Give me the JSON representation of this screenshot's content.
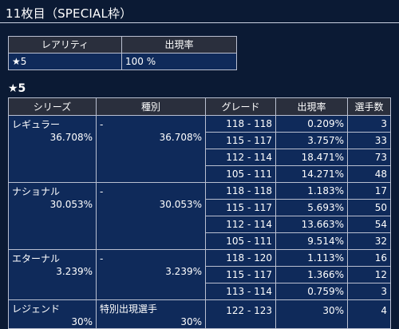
{
  "page_title": "11枚目（SPECIAL枠）",
  "rarity_table": {
    "headers": [
      "レアリティ",
      "出現率"
    ],
    "rows": [
      {
        "rarity": "★5",
        "rate": "100 %"
      }
    ]
  },
  "section_title": "★5",
  "breakdown_table": {
    "headers": [
      "シリーズ",
      "種別",
      "グレード",
      "出現率",
      "選手数"
    ],
    "groups": [
      {
        "series": "レギュラー",
        "series_rate": "36.708%",
        "type": "-",
        "type_rate": "36.708%",
        "rows": [
          {
            "grade": "118 - 118",
            "rate": "0.209%",
            "count": "3"
          },
          {
            "grade": "115 - 117",
            "rate": "3.757%",
            "count": "33"
          },
          {
            "grade": "112 - 114",
            "rate": "18.471%",
            "count": "73"
          },
          {
            "grade": "105 - 111",
            "rate": "14.271%",
            "count": "48"
          }
        ]
      },
      {
        "series": "ナショナル",
        "series_rate": "30.053%",
        "type": "-",
        "type_rate": "30.053%",
        "rows": [
          {
            "grade": "118 - 118",
            "rate": "1.183%",
            "count": "17"
          },
          {
            "grade": "115 - 117",
            "rate": "5.693%",
            "count": "50"
          },
          {
            "grade": "112 - 114",
            "rate": "13.663%",
            "count": "54"
          },
          {
            "grade": "105 - 111",
            "rate": "9.514%",
            "count": "32"
          }
        ]
      },
      {
        "series": "エターナル",
        "series_rate": "3.239%",
        "type": "-",
        "type_rate": "3.239%",
        "rows": [
          {
            "grade": "118 - 120",
            "rate": "1.113%",
            "count": "16"
          },
          {
            "grade": "115 - 117",
            "rate": "1.366%",
            "count": "12"
          },
          {
            "grade": "113 - 114",
            "rate": "0.759%",
            "count": "3"
          }
        ]
      },
      {
        "series": "レジェンド",
        "series_rate": "30%",
        "type": "特別出現選手",
        "type_rate": "30%",
        "rows": [
          {
            "grade": "122 - 123",
            "rate": "30%",
            "count": "4"
          }
        ]
      }
    ]
  }
}
